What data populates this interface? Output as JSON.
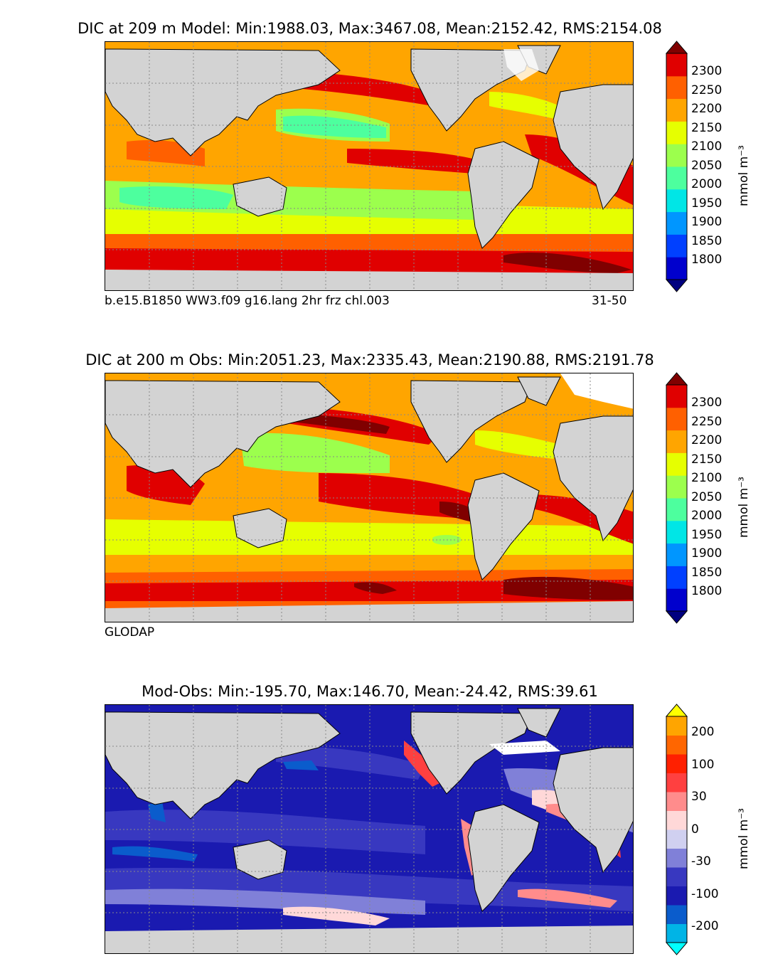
{
  "panels": [
    {
      "id": "model",
      "title": "DIC at 209 m Model: Min:1988.03, Max:3467.08, Mean:2152.42, RMS:2154.08",
      "caption_left": "b.e15.B1850 WW3.f09 g16.lang 2hr frz chl.003",
      "caption_right": "31-50",
      "colorbar": {
        "unit": "mmol m⁻³",
        "labels": [
          "2300",
          "2250",
          "2200",
          "2150",
          "2100",
          "2050",
          "2000",
          "1950",
          "1900",
          "1850",
          "1800"
        ],
        "colors": [
          "#000080",
          "#0000cd",
          "#0040ff",
          "#0096ff",
          "#00e6e6",
          "#4dff9e",
          "#9cff4d",
          "#e6ff00",
          "#ffa500",
          "#ff6000",
          "#e00000",
          "#800000"
        ]
      }
    },
    {
      "id": "obs",
      "title": "DIC at 200 m Obs: Min:2051.23, Max:2335.43, Mean:2190.88, RMS:2191.78",
      "caption_left": "GLODAP",
      "colorbar": {
        "unit": "mmol m⁻³",
        "labels": [
          "2300",
          "2250",
          "2200",
          "2150",
          "2100",
          "2050",
          "2000",
          "1950",
          "1900",
          "1850",
          "1800"
        ],
        "colors": [
          "#000080",
          "#0000cd",
          "#0040ff",
          "#0096ff",
          "#00e6e6",
          "#4dff9e",
          "#9cff4d",
          "#e6ff00",
          "#ffa500",
          "#ff6000",
          "#e00000",
          "#800000"
        ]
      }
    },
    {
      "id": "diff",
      "title": "Mod-Obs: Min:-195.70, Max:146.70, Mean:-24.42, RMS:39.61",
      "colorbar": {
        "unit": "mmol m⁻³",
        "labels": [
          "200",
          "100",
          "30",
          "0",
          "-30",
          "-100",
          "-200"
        ],
        "colors": [
          "#00ffff",
          "#00b4e6",
          "#0a5ccc",
          "#1a1ab0",
          "#3838c0",
          "#8080d8",
          "#d0d0f0",
          "#ffd8d8",
          "#ff8c8c",
          "#ff4040",
          "#ff2000",
          "#ff6600",
          "#ffa500",
          "#ffff00"
        ]
      }
    }
  ],
  "map_colors": {
    "land": "#d3d3d3",
    "coast": "#000000",
    "grid": "#888888",
    "seaice": "#ffffff"
  }
}
